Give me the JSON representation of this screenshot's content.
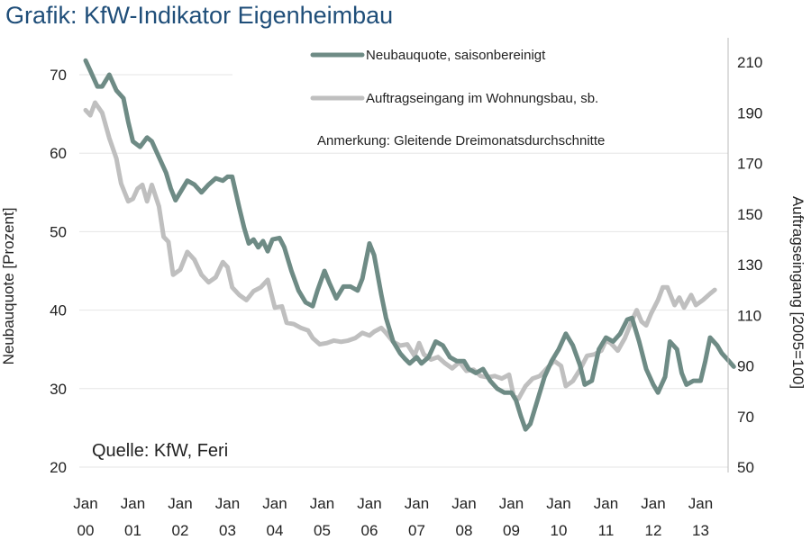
{
  "chart_data": {
    "type": "line",
    "title": "Grafik: KfW-Indikator Eigenheimbau",
    "ylabel_left": "Neubauquote [Prozent]",
    "ylabel_right": "Auftragseingang [2005=100]",
    "ylim_left": [
      20,
      75
    ],
    "ylim_right": [
      50,
      215
    ],
    "yticks_left": [
      "20",
      "30",
      "40",
      "50",
      "60",
      "70"
    ],
    "yticks_right": [
      "50",
      "70",
      "90",
      "110",
      "130",
      "150",
      "170",
      "190",
      "210"
    ],
    "x_range": [
      2000.0,
      2013.3
    ],
    "xticks": [
      {
        "x": 2000,
        "line1": "Jan",
        "line2": "00"
      },
      {
        "x": 2001,
        "line1": "Jan",
        "line2": "01"
      },
      {
        "x": 2002,
        "line1": "Jan",
        "line2": "02"
      },
      {
        "x": 2003,
        "line1": "Jan",
        "line2": "03"
      },
      {
        "x": 2004,
        "line1": "Jan",
        "line2": "04"
      },
      {
        "x": 2005,
        "line1": "Jan",
        "line2": "05"
      },
      {
        "x": 2006,
        "line1": "Jan",
        "line2": "06"
      },
      {
        "x": 2007,
        "line1": "Jan",
        "line2": "07"
      },
      {
        "x": 2008,
        "line1": "Jan",
        "line2": "08"
      },
      {
        "x": 2009,
        "line1": "Jan",
        "line2": "09"
      },
      {
        "x": 2010,
        "line1": "Jan",
        "line2": "10"
      },
      {
        "x": 2011,
        "line1": "Jan",
        "line2": "11"
      },
      {
        "x": 2012,
        "line1": "Jan",
        "line2": "12"
      },
      {
        "x": 2013,
        "line1": "Jan",
        "line2": "13"
      }
    ],
    "grid": "horizontal",
    "legend_position": "top",
    "note": "Anmerkung: Gleitende Dreimonatsdurchschnitte",
    "source": "Quelle: KfW, Feri",
    "series": [
      {
        "name": "Neubauquote, saisonbereinigt",
        "axis": "left",
        "color": "#6e8b85",
        "points": [
          [
            2000.0,
            71.8
          ],
          [
            2000.1,
            70.5
          ],
          [
            2000.25,
            68.5
          ],
          [
            2000.35,
            68.5
          ],
          [
            2000.5,
            70.0
          ],
          [
            2000.65,
            68.0
          ],
          [
            2000.8,
            67.0
          ],
          [
            2000.9,
            64.0
          ],
          [
            2001.0,
            61.5
          ],
          [
            2001.15,
            60.8
          ],
          [
            2001.3,
            62.0
          ],
          [
            2001.4,
            61.5
          ],
          [
            2001.55,
            59.5
          ],
          [
            2001.7,
            57.5
          ],
          [
            2001.8,
            55.5
          ],
          [
            2001.9,
            54.0
          ],
          [
            2002.0,
            55.0
          ],
          [
            2002.15,
            56.5
          ],
          [
            2002.3,
            56.0
          ],
          [
            2002.45,
            55.0
          ],
          [
            2002.6,
            56.0
          ],
          [
            2002.75,
            56.8
          ],
          [
            2002.9,
            56.5
          ],
          [
            2003.0,
            57.0
          ],
          [
            2003.1,
            57.0
          ],
          [
            2003.25,
            53.0
          ],
          [
            2003.35,
            50.5
          ],
          [
            2003.45,
            48.5
          ],
          [
            2003.55,
            49.0
          ],
          [
            2003.65,
            48.0
          ],
          [
            2003.75,
            48.8
          ],
          [
            2003.85,
            47.5
          ],
          [
            2003.95,
            49.0
          ],
          [
            2004.1,
            49.2
          ],
          [
            2004.2,
            48.0
          ],
          [
            2004.35,
            45.0
          ],
          [
            2004.5,
            42.5
          ],
          [
            2004.65,
            41.0
          ],
          [
            2004.8,
            40.5
          ],
          [
            2004.9,
            42.5
          ],
          [
            2005.05,
            45.0
          ],
          [
            2005.15,
            43.5
          ],
          [
            2005.3,
            41.5
          ],
          [
            2005.45,
            43.0
          ],
          [
            2005.6,
            43.0
          ],
          [
            2005.75,
            42.5
          ],
          [
            2005.85,
            44.0
          ],
          [
            2006.0,
            48.5
          ],
          [
            2006.1,
            47.0
          ],
          [
            2006.25,
            42.0
          ],
          [
            2006.35,
            39.0
          ],
          [
            2006.5,
            36.0
          ],
          [
            2006.65,
            34.5
          ],
          [
            2006.75,
            33.8
          ],
          [
            2006.85,
            33.2
          ],
          [
            2007.0,
            34.0
          ],
          [
            2007.1,
            33.2
          ],
          [
            2007.25,
            34.0
          ],
          [
            2007.4,
            36.0
          ],
          [
            2007.55,
            35.5
          ],
          [
            2007.7,
            34.0
          ],
          [
            2007.85,
            33.5
          ],
          [
            2008.0,
            33.5
          ],
          [
            2008.1,
            32.5
          ],
          [
            2008.25,
            32.0
          ],
          [
            2008.4,
            32.5
          ],
          [
            2008.55,
            31.0
          ],
          [
            2008.7,
            30.0
          ],
          [
            2008.85,
            29.5
          ],
          [
            2009.0,
            29.5
          ],
          [
            2009.1,
            28.5
          ],
          [
            2009.2,
            26.5
          ],
          [
            2009.3,
            24.8
          ],
          [
            2009.4,
            25.5
          ],
          [
            2009.55,
            28.5
          ],
          [
            2009.7,
            31.5
          ],
          [
            2009.85,
            33.5
          ],
          [
            2010.0,
            35.0
          ],
          [
            2010.15,
            37.0
          ],
          [
            2010.3,
            35.5
          ],
          [
            2010.45,
            33.0
          ],
          [
            2010.55,
            30.5
          ],
          [
            2010.7,
            31.0
          ],
          [
            2010.85,
            35.0
          ],
          [
            2011.0,
            36.5
          ],
          [
            2011.15,
            36.0
          ],
          [
            2011.3,
            37.0
          ],
          [
            2011.45,
            38.8
          ],
          [
            2011.55,
            39.0
          ],
          [
            2011.7,
            36.0
          ],
          [
            2011.85,
            32.5
          ],
          [
            2012.0,
            30.5
          ],
          [
            2012.1,
            29.5
          ],
          [
            2012.25,
            31.5
          ],
          [
            2012.35,
            36.0
          ],
          [
            2012.5,
            35.0
          ],
          [
            2012.6,
            32.0
          ],
          [
            2012.7,
            30.5
          ],
          [
            2012.85,
            31.0
          ],
          [
            2013.0,
            31.0
          ],
          [
            2013.1,
            33.5
          ],
          [
            2013.2,
            36.5
          ],
          [
            2013.35,
            35.5
          ],
          [
            2013.45,
            34.5
          ],
          [
            2013.6,
            33.5
          ],
          [
            2013.7,
            32.8
          ]
        ]
      },
      {
        "name": "Auftragseingang im Wohnungsbau, sb.",
        "axis": "right",
        "color": "#bfbfbf",
        "points": [
          [
            2000.0,
            191.0
          ],
          [
            2000.1,
            189.0
          ],
          [
            2000.2,
            194.0
          ],
          [
            2000.35,
            190.0
          ],
          [
            2000.5,
            180.0
          ],
          [
            2000.65,
            172.0
          ],
          [
            2000.75,
            162.0
          ],
          [
            2000.9,
            155.0
          ],
          [
            2001.0,
            156.0
          ],
          [
            2001.1,
            160.0
          ],
          [
            2001.2,
            161.5
          ],
          [
            2001.3,
            155.0
          ],
          [
            2001.4,
            161.5
          ],
          [
            2001.55,
            153.0
          ],
          [
            2001.65,
            141.0
          ],
          [
            2001.75,
            139.0
          ],
          [
            2001.85,
            126.0
          ],
          [
            2002.0,
            128.0
          ],
          [
            2002.15,
            135.0
          ],
          [
            2002.3,
            132.0
          ],
          [
            2002.45,
            126.0
          ],
          [
            2002.6,
            123.0
          ],
          [
            2002.75,
            125.0
          ],
          [
            2002.9,
            131.0
          ],
          [
            2003.0,
            129.0
          ],
          [
            2003.1,
            121.0
          ],
          [
            2003.25,
            118.0
          ],
          [
            2003.4,
            116.0
          ],
          [
            2003.55,
            119.5
          ],
          [
            2003.7,
            121.0
          ],
          [
            2003.85,
            124.0
          ],
          [
            2004.0,
            113.0
          ],
          [
            2004.15,
            113.5
          ],
          [
            2004.25,
            107.0
          ],
          [
            2004.4,
            106.5
          ],
          [
            2004.55,
            105.0
          ],
          [
            2004.7,
            104.0
          ],
          [
            2004.8,
            101.0
          ],
          [
            2004.95,
            98.5
          ],
          [
            2005.1,
            99.0
          ],
          [
            2005.25,
            100.0
          ],
          [
            2005.4,
            99.5
          ],
          [
            2005.55,
            100.0
          ],
          [
            2005.7,
            101.0
          ],
          [
            2005.85,
            103.0
          ],
          [
            2006.0,
            102.0
          ],
          [
            2006.1,
            103.5
          ],
          [
            2006.25,
            105.0
          ],
          [
            2006.35,
            103.0
          ],
          [
            2006.5,
            99.5
          ],
          [
            2006.65,
            98.0
          ],
          [
            2006.8,
            98.5
          ],
          [
            2006.95,
            94.0
          ],
          [
            2007.05,
            99.0
          ],
          [
            2007.15,
            94.5
          ],
          [
            2007.3,
            92.5
          ],
          [
            2007.45,
            93.5
          ],
          [
            2007.6,
            91.0
          ],
          [
            2007.75,
            89.0
          ],
          [
            2007.9,
            91.5
          ],
          [
            2008.05,
            88.0
          ],
          [
            2008.2,
            88.5
          ],
          [
            2008.35,
            86.0
          ],
          [
            2008.5,
            85.5
          ],
          [
            2008.65,
            86.0
          ],
          [
            2008.8,
            85.0
          ],
          [
            2008.95,
            86.5
          ],
          [
            2009.05,
            78.0
          ],
          [
            2009.15,
            77.0
          ],
          [
            2009.3,
            82.0
          ],
          [
            2009.45,
            85.0
          ],
          [
            2009.6,
            86.0
          ],
          [
            2009.75,
            89.0
          ],
          [
            2009.9,
            92.0
          ],
          [
            2010.05,
            90.0
          ],
          [
            2010.15,
            82.0
          ],
          [
            2010.3,
            84.0
          ],
          [
            2010.45,
            88.5
          ],
          [
            2010.6,
            94.0
          ],
          [
            2010.75,
            94.5
          ],
          [
            2010.9,
            96.0
          ],
          [
            2011.0,
            100.0
          ],
          [
            2011.1,
            99.0
          ],
          [
            2011.25,
            96.0
          ],
          [
            2011.4,
            101.0
          ],
          [
            2011.55,
            108.0
          ],
          [
            2011.65,
            112.0
          ],
          [
            2011.75,
            107.5
          ],
          [
            2011.85,
            106.0
          ],
          [
            2011.95,
            110.5
          ],
          [
            2012.1,
            116.0
          ],
          [
            2012.2,
            121.0
          ],
          [
            2012.3,
            121.0
          ],
          [
            2012.45,
            114.0
          ],
          [
            2012.55,
            117.0
          ],
          [
            2012.65,
            113.0
          ],
          [
            2012.8,
            118.0
          ],
          [
            2012.9,
            114.0
          ],
          [
            2013.05,
            116.0
          ],
          [
            2013.2,
            118.5
          ],
          [
            2013.3,
            120.0
          ]
        ]
      }
    ]
  }
}
